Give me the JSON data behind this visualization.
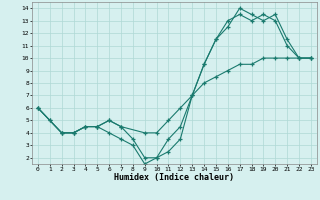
{
  "xlabel": "Humidex (Indice chaleur)",
  "xlim": [
    -0.5,
    23.5
  ],
  "ylim": [
    1.5,
    14.5
  ],
  "xticks": [
    0,
    1,
    2,
    3,
    4,
    5,
    6,
    7,
    8,
    9,
    10,
    11,
    12,
    13,
    14,
    15,
    16,
    17,
    18,
    19,
    20,
    21,
    22,
    23
  ],
  "yticks": [
    2,
    3,
    4,
    5,
    6,
    7,
    8,
    9,
    10,
    11,
    12,
    13,
    14
  ],
  "line_color": "#1a7a6e",
  "bg_color": "#d6f0ef",
  "grid_color": "#afd8d5",
  "line1_x": [
    0,
    1,
    2,
    3,
    4,
    5,
    6,
    7,
    8,
    9,
    10,
    11,
    12,
    13,
    14,
    15,
    16,
    17,
    18,
    19,
    20,
    21,
    22,
    23
  ],
  "line1_y": [
    6,
    5,
    4,
    4,
    4.5,
    4.5,
    4,
    3.5,
    3,
    1.5,
    2,
    2.5,
    3.5,
    7,
    9.5,
    11.5,
    12.5,
    14,
    13.5,
    13,
    13.5,
    11.5,
    10,
    10
  ],
  "line2_x": [
    0,
    1,
    2,
    3,
    4,
    5,
    6,
    7,
    8,
    9,
    10,
    11,
    12,
    13,
    14,
    15,
    16,
    17,
    18,
    19,
    20,
    21,
    22,
    23
  ],
  "line2_y": [
    6,
    5,
    4,
    4,
    4.5,
    4.5,
    5,
    4.5,
    3.5,
    2,
    2,
    3.5,
    4.5,
    7,
    9.5,
    11.5,
    13,
    13.5,
    13,
    13.5,
    13,
    11,
    10,
    10
  ],
  "line3_x": [
    0,
    2,
    3,
    4,
    5,
    6,
    7,
    9,
    10,
    11,
    12,
    13,
    14,
    15,
    16,
    17,
    18,
    19,
    20,
    21,
    22,
    23
  ],
  "line3_y": [
    6,
    4,
    4,
    4.5,
    4.5,
    5,
    4.5,
    4,
    4,
    5,
    6,
    7,
    8,
    8.5,
    9,
    9.5,
    9.5,
    10,
    10,
    10,
    10,
    10
  ]
}
